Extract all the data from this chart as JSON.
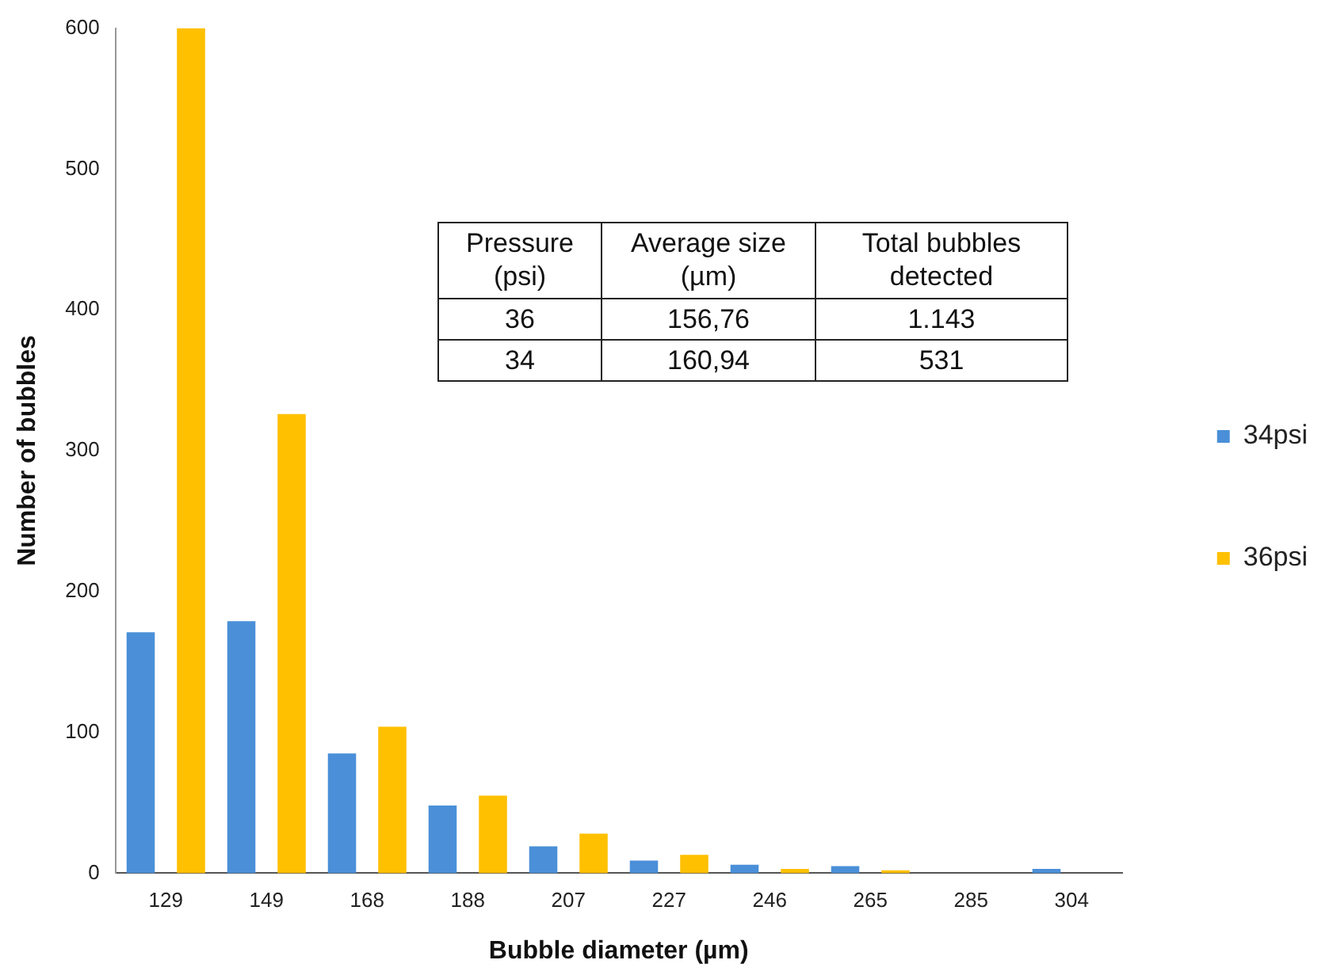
{
  "chart_data": {
    "type": "bar",
    "xlabel": "Bubble diameter (µm)",
    "ylabel": "Number of bubbles",
    "categories": [
      "129",
      "149",
      "168",
      "188",
      "207",
      "227",
      "246",
      "265",
      "285",
      "304"
    ],
    "series": [
      {
        "name": "34psi",
        "color": "#4a8fd8",
        "values": [
          171,
          179,
          85,
          48,
          19,
          9,
          6,
          5,
          0,
          3
        ]
      },
      {
        "name": "36psi",
        "color": "#ffc000",
        "values": [
          600,
          326,
          104,
          55,
          28,
          13,
          3,
          2,
          0,
          0
        ]
      }
    ],
    "ylim": [
      0,
      600
    ],
    "yticks": [
      0,
      100,
      200,
      300,
      400,
      500,
      600
    ],
    "grid": false,
    "legend": "right",
    "annotations": [
      "Pressure (psi)",
      "Average size (µm)",
      "Total bubbles detected",
      "36",
      "156,76",
      "1.143",
      "34",
      "160,94",
      "531"
    ]
  }
}
